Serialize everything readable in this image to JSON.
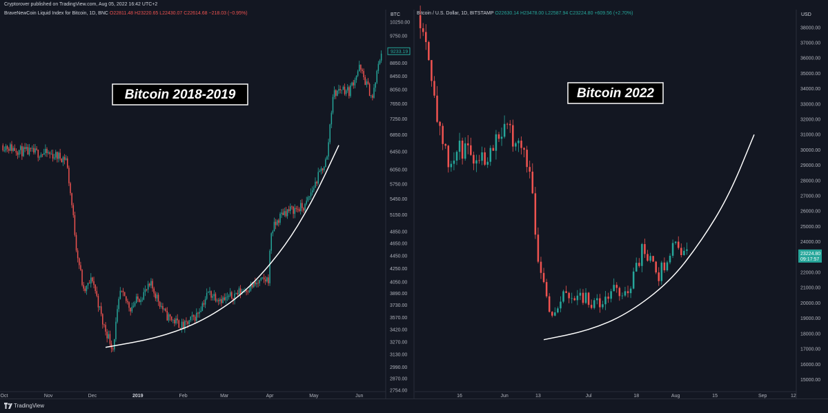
{
  "header": {
    "publisher": "Cryptorover published on TradingView.com, Aug 05, 2022 16:42 UTC+2"
  },
  "footer": {
    "brand": "TradingView"
  },
  "colors": {
    "background": "#131722",
    "up": "#26a69a",
    "down": "#ef5350",
    "axis_text": "#b2b5be",
    "separator": "#2a2e39",
    "trend_curve": "#ffffff"
  },
  "chart_data": [
    {
      "type": "candlestick",
      "instrument": "BraveNewCoin Liquid Index for Bitcoin, 1D, BNC",
      "ohlc_label": {
        "open": "O22811.48",
        "high": "H23220.65",
        "low": "L22430.07",
        "close": "C22614.68",
        "change": "−218.03 (−0.95%)"
      },
      "annotation": "Bitcoin 2018-2019",
      "y_unit": "BTC",
      "y_ticks": [
        "10250.00",
        "9750.00",
        "9250.00",
        "8850.00",
        "8450.00",
        "8050.00",
        "7650.00",
        "7250.00",
        "6850.00",
        "6450.00",
        "6050.00",
        "5750.00",
        "5450.00",
        "5150.00",
        "4850.00",
        "4650.00",
        "4450.00",
        "4250.00",
        "4050.00",
        "3890.00",
        "3730.00",
        "3570.00",
        "3420.00",
        "3270.00",
        "3130.00",
        "2990.00",
        "2870.00",
        "2754.00"
      ],
      "x_ticks": [
        "Oct",
        "Nov",
        "Dec",
        "2019",
        "Feb",
        "Mar",
        "Apr",
        "May",
        "Jun"
      ],
      "last_price": "9233.19",
      "y_scale": "log",
      "y_range": [
        2754,
        10500
      ],
      "anchors": [
        [
          "2018-10-01",
          6600
        ],
        [
          "2018-10-15",
          6450
        ],
        [
          "2018-11-01",
          6400
        ],
        [
          "2018-11-13",
          6300
        ],
        [
          "2018-11-20",
          4600
        ],
        [
          "2018-11-25",
          3900
        ],
        [
          "2018-12-01",
          4100
        ],
        [
          "2018-12-08",
          3500
        ],
        [
          "2018-12-15",
          3200
        ],
        [
          "2018-12-20",
          3900
        ],
        [
          "2018-12-27",
          3700
        ],
        [
          "2019-01-10",
          4000
        ],
        [
          "2019-01-20",
          3600
        ],
        [
          "2019-02-01",
          3450
        ],
        [
          "2019-02-10",
          3600
        ],
        [
          "2019-02-18",
          3900
        ],
        [
          "2019-03-01",
          3800
        ],
        [
          "2019-03-15",
          3950
        ],
        [
          "2019-03-31",
          4100
        ],
        [
          "2019-04-02",
          4850
        ],
        [
          "2019-04-10",
          5200
        ],
        [
          "2019-04-25",
          5300
        ],
        [
          "2019-05-10",
          6300
        ],
        [
          "2019-05-14",
          7900
        ],
        [
          "2019-05-20",
          8100
        ],
        [
          "2019-05-25",
          8000
        ],
        [
          "2019-06-01",
          8700
        ],
        [
          "2019-06-10",
          7800
        ],
        [
          "2019-06-16",
          9233
        ]
      ],
      "trend_curve": [
        [
          "2018-12-10",
          3210
        ],
        [
          "2019-01-15",
          3320
        ],
        [
          "2019-02-15",
          3530
        ],
        [
          "2019-03-15",
          3900
        ],
        [
          "2019-04-10",
          4550
        ],
        [
          "2019-04-30",
          5400
        ],
        [
          "2019-05-18",
          6600
        ]
      ]
    },
    {
      "type": "candlestick",
      "instrument": "Bitcoin / U.S. Dollar, 1D, BITSTAMP",
      "ohlc_label": {
        "open": "O22630.14",
        "high": "H23478.00",
        "low": "L22587.94",
        "close": "C23224.80",
        "change": "+609.56 (+2.70%)"
      },
      "annotation": "Bitcoin 2022",
      "y_unit": "USD",
      "y_ticks": [
        "38000.00",
        "37000.00",
        "36000.00",
        "35000.00",
        "34000.00",
        "33000.00",
        "32000.00",
        "31000.00",
        "30000.00",
        "29000.00",
        "28000.00",
        "27000.00",
        "26000.00",
        "25000.00",
        "24000.00",
        "23000.00",
        "22000.00",
        "21000.00",
        "20000.00",
        "19000.00",
        "18000.00",
        "17000.00",
        "16000.00",
        "15000.00"
      ],
      "x_ticks": [
        "16",
        "Jun",
        "13",
        "Jul",
        "18",
        "Aug",
        "15",
        "Sep",
        "12"
      ],
      "last_price": "23224.80",
      "countdown": "09:17:57",
      "y_scale": "linear",
      "y_range": [
        14300,
        38800
      ],
      "anchors": [
        [
          "2022-05-02",
          38800
        ],
        [
          "2022-05-05",
          36500
        ],
        [
          "2022-05-09",
          31000
        ],
        [
          "2022-05-12",
          29000
        ],
        [
          "2022-05-16",
          30000
        ],
        [
          "2022-05-25",
          29500
        ],
        [
          "2022-05-31",
          31500
        ],
        [
          "2022-06-06",
          30500
        ],
        [
          "2022-06-10",
          29000
        ],
        [
          "2022-06-13",
          23000
        ],
        [
          "2022-06-15",
          21500
        ],
        [
          "2022-06-18",
          19000
        ],
        [
          "2022-06-22",
          20500
        ],
        [
          "2022-06-28",
          20500
        ],
        [
          "2022-07-05",
          19800
        ],
        [
          "2022-07-10",
          20800
        ],
        [
          "2022-07-15",
          20700
        ],
        [
          "2022-07-20",
          23400
        ],
        [
          "2022-07-26",
          21800
        ],
        [
          "2022-07-31",
          23800
        ],
        [
          "2022-08-05",
          23224
        ]
      ],
      "trend_curve": [
        [
          "2022-06-15",
          17600
        ],
        [
          "2022-07-01",
          18200
        ],
        [
          "2022-07-15",
          19300
        ],
        [
          "2022-07-30",
          21400
        ],
        [
          "2022-08-10",
          24000
        ],
        [
          "2022-08-20",
          27000
        ],
        [
          "2022-08-29",
          31000
        ]
      ]
    }
  ]
}
